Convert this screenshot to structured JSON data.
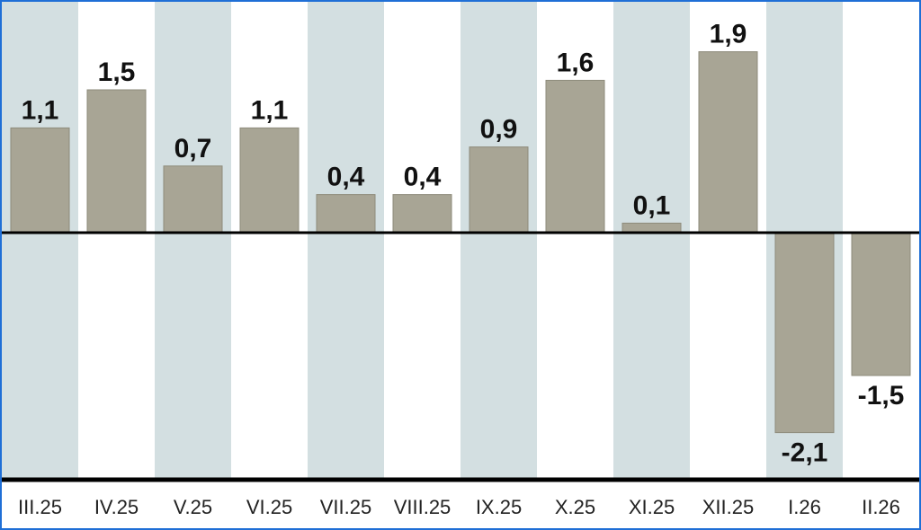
{
  "chart_data": {
    "type": "bar",
    "categories": [
      "III.25",
      "IV.25",
      "V.25",
      "VI.25",
      "VII.25",
      "VIII.25",
      "IX.25",
      "X.25",
      "XI.25",
      "XII.25",
      "I.26",
      "II.26"
    ],
    "values": [
      1.1,
      1.5,
      0.7,
      1.1,
      0.4,
      0.4,
      0.9,
      1.6,
      0.1,
      1.9,
      -2.1,
      -1.5
    ],
    "value_labels": [
      "1,1",
      "1,5",
      "0,7",
      "1,1",
      "0,4",
      "0,4",
      "0,9",
      "1,6",
      "0,1",
      "1,9",
      "-2,1",
      "-1,5"
    ],
    "ylim": [
      -2.65,
      2.35
    ],
    "grid": false,
    "colors": {
      "bar": "#a8a595",
      "bar_edge": "#8e8b7b",
      "band_shaded": "#d3dfe1",
      "band_plain": "#ffffff",
      "axis": "#000000",
      "frame": "#1f6fd6"
    }
  }
}
